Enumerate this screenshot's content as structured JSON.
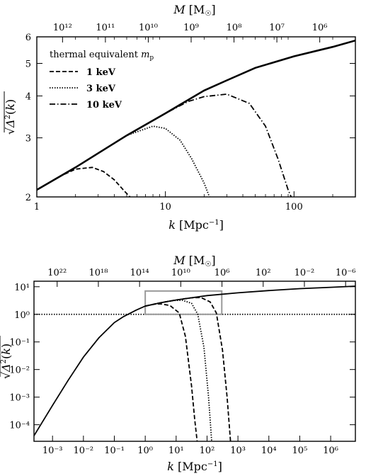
{
  "chart_data": [
    {
      "type": "line",
      "xlabel": "k [Mpc⁻¹]",
      "ylabel": "√Δ²(k)",
      "top_label": "M [M☉]",
      "xscale": "log",
      "yscale": "log",
      "xlim": [
        1,
        300
      ],
      "ylim": [
        2,
        6
      ],
      "x_ticks": [
        1,
        10,
        100
      ],
      "x_tick_labels": [
        "1",
        "10",
        "100"
      ],
      "y_ticks": [
        2,
        3,
        4,
        5,
        6
      ],
      "y_tick_labels": [
        "2",
        "3",
        "4",
        "5",
        "6"
      ],
      "top_ticks_mass": [
        1000000000000.0,
        100000000000.0,
        10000000000.0,
        1000000000.0,
        100000000.0,
        10000000.0,
        1000000.0
      ],
      "top_tick_labels": [
        "10¹²",
        "10¹¹",
        "10¹⁰",
        "10⁹",
        "10⁸",
        "10⁷",
        "10⁶"
      ],
      "legend_title": "thermal equivalent m_p",
      "legend_placement": "top-left",
      "series": [
        {
          "name": "",
          "style": "solid",
          "x": [
            1,
            2,
            3,
            5,
            10,
            20,
            30,
            50,
            100,
            200,
            300
          ],
          "y": [
            2.1,
            2.45,
            2.7,
            3.05,
            3.55,
            4.15,
            4.45,
            4.85,
            5.25,
            5.6,
            5.85
          ]
        },
        {
          "name": "1 keV",
          "style": "dashed",
          "x": [
            1,
            1.5,
            2,
            2.7,
            3.3,
            4,
            4.7,
            5.3
          ],
          "y": [
            2.1,
            2.3,
            2.42,
            2.45,
            2.38,
            2.25,
            2.1,
            2.0
          ]
        },
        {
          "name": "3 keV",
          "style": "dotted",
          "x": [
            1,
            2,
            3,
            5,
            8,
            10,
            13,
            16,
            20,
            22
          ],
          "y": [
            2.1,
            2.45,
            2.7,
            3.05,
            3.25,
            3.2,
            2.95,
            2.6,
            2.2,
            2.0
          ]
        },
        {
          "name": "10 keV",
          "style": "dashdot",
          "x": [
            1,
            2,
            3,
            5,
            10,
            15,
            20,
            30,
            45,
            60,
            75,
            90,
            95
          ],
          "y": [
            2.1,
            2.45,
            2.7,
            3.05,
            3.55,
            3.85,
            3.98,
            4.05,
            3.8,
            3.25,
            2.6,
            2.1,
            2.0
          ]
        }
      ]
    },
    {
      "type": "line",
      "xlabel": "k [Mpc⁻¹]",
      "ylabel": "√Δ²(k)",
      "top_label": "M [M☉]",
      "xscale": "log",
      "yscale": "log",
      "xlim_log10": [
        -3.6,
        6.8
      ],
      "ylim_log10": [
        -4.6,
        1.2
      ],
      "x_ticks_log10": [
        -3,
        -2,
        -1,
        0,
        1,
        2,
        3,
        4,
        5,
        6
      ],
      "x_tick_labels": [
        "10⁻³",
        "10⁻²",
        "10⁻¹",
        "10⁰",
        "10¹",
        "10²",
        "10³",
        "10⁴",
        "10⁵",
        "10⁶"
      ],
      "y_ticks_log10": [
        1,
        0,
        -1,
        -2,
        -3,
        -4
      ],
      "y_tick_labels": [
        "10¹",
        "10⁰",
        "10⁻¹",
        "10⁻²",
        "10⁻³",
        "10⁻⁴"
      ],
      "top_ticks_mass_log10": [
        22,
        18,
        14,
        10,
        6,
        2,
        -2,
        -6
      ],
      "top_tick_labels": [
        "10²²",
        "10¹⁸",
        "10¹⁴",
        "10¹⁰",
        "10⁶",
        "10²",
        "10⁻²",
        "10⁻⁶"
      ],
      "reference_line": {
        "style": "dotted",
        "y": 1
      },
      "inset_box": {
        "k_range": [
          1,
          300
        ],
        "y_range": [
          1,
          7
        ]
      },
      "series": [
        {
          "name": "",
          "style": "solid",
          "x_log10": [
            -3.6,
            -3.0,
            -2.5,
            -2.0,
            -1.5,
            -1.0,
            -0.7,
            -0.3,
            0,
            0.5,
            1,
            2,
            3,
            4,
            5,
            6,
            6.8
          ],
          "y_log10": [
            -4.4,
            -3.3,
            -2.4,
            -1.55,
            -0.85,
            -0.3,
            -0.08,
            0.15,
            0.3,
            0.42,
            0.52,
            0.68,
            0.78,
            0.86,
            0.93,
            0.98,
            1.02
          ]
        },
        {
          "name": "1 keV",
          "style": "dashed",
          "x_log10": [
            0,
            0.3,
            0.5,
            0.8,
            1.1,
            1.3,
            1.5,
            1.6,
            1.68
          ],
          "y_log10": [
            0.3,
            0.37,
            0.38,
            0.32,
            0.05,
            -0.8,
            -2.6,
            -3.8,
            -4.6
          ]
        },
        {
          "name": "3 keV",
          "style": "dotted",
          "x_log10": [
            0,
            0.5,
            0.9,
            1.2,
            1.5,
            1.7,
            1.9,
            2.05,
            2.15
          ],
          "y_log10": [
            0.3,
            0.42,
            0.5,
            0.51,
            0.4,
            0.0,
            -1.2,
            -3.0,
            -4.6
          ]
        },
        {
          "name": "10 keV",
          "style": "dashed",
          "x_log10": [
            0,
            0.5,
            1,
            1.5,
            1.8,
            2.1,
            2.3,
            2.5,
            2.65,
            2.76
          ],
          "y_log10": [
            0.3,
            0.42,
            0.52,
            0.6,
            0.61,
            0.45,
            0.05,
            -1.3,
            -3.0,
            -4.6
          ]
        }
      ]
    }
  ]
}
